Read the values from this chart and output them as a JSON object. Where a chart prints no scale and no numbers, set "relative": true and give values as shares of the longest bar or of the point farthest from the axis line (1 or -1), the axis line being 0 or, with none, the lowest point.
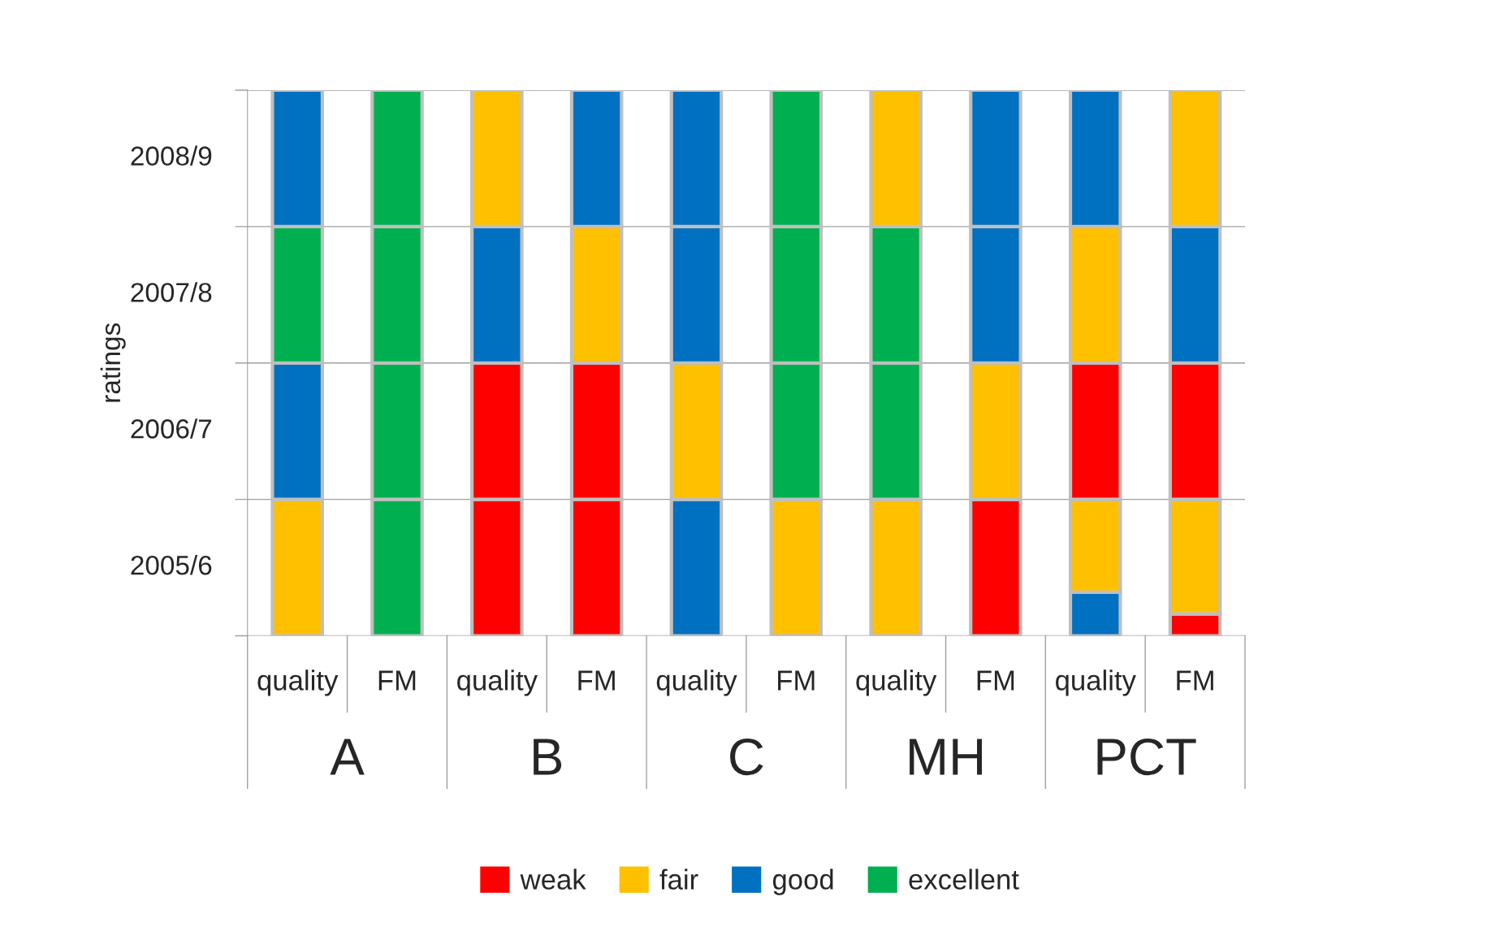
{
  "chart_data": {
    "type": "bar",
    "ylabel": "ratings",
    "relative": true,
    "stacked": true,
    "categories": [
      "quality",
      "FM",
      "quality",
      "FM",
      "quality",
      "FM",
      "quality",
      "FM",
      "quality",
      "FM"
    ],
    "series": [
      {
        "values": [
          0.25,
          0.25,
          0.25,
          0.25,
          0.25,
          0.25,
          0.25,
          0.25,
          0.08,
          0.04
        ],
        "colors": [
          "#ffc000",
          "#00b050",
          "#ff0000",
          "#ff0000",
          "#0070c0",
          "#ffc000",
          "#ffc000",
          "#ff0000",
          "#0070c0",
          "#ff0000"
        ]
      },
      {
        "values": [
          null,
          null,
          null,
          null,
          null,
          null,
          null,
          null,
          0.17,
          0.21
        ],
        "colors": [
          null,
          null,
          null,
          null,
          null,
          null,
          null,
          null,
          "#ffc000",
          "#ffc000"
        ]
      },
      {
        "values": [
          0.25,
          0.25,
          0.25,
          0.25,
          0.25,
          0.25,
          0.25,
          0.25,
          0.25,
          0.25
        ],
        "colors": [
          "#0070c0",
          "#00b050",
          "#ff0000",
          "#ff0000",
          "#ffc000",
          "#00b050",
          "#00b050",
          "#ffc000",
          "#ff0000",
          "#ff0000"
        ]
      },
      {
        "values": [
          0.25,
          0.25,
          0.25,
          0.25,
          0.25,
          0.25,
          0.25,
          0.25,
          0.25,
          0.25
        ],
        "colors": [
          "#00b050",
          "#00b050",
          "#0070c0",
          "#ffc000",
          "#0070c0",
          "#00b050",
          "#00b050",
          "#0070c0",
          "#ffc000",
          "#0070c0"
        ]
      },
      {
        "values": [
          0.25,
          0.25,
          0.25,
          0.25,
          0.25,
          0.25,
          0.25,
          0.25,
          0.25,
          0.25
        ],
        "colors": [
          "#0070c0",
          "#00b050",
          "#ffc000",
          "#0070c0",
          "#0070c0",
          "#00b050",
          "#ffc000",
          "#0070c0",
          "#0070c0",
          "#ffc000"
        ]
      },
      {
        "name": "weak",
        "color": "#ff0000",
        "values": [
          null,
          null,
          null,
          null,
          null,
          null,
          null,
          null,
          null,
          null
        ]
      },
      {
        "name": "fair",
        "color": "#ffc000",
        "values": [
          null,
          null,
          null,
          null,
          null,
          null,
          null,
          null,
          null,
          null
        ]
      },
      {
        "name": "good",
        "color": "#0070c0",
        "values": [
          null,
          null,
          null,
          null,
          null,
          null,
          null,
          null,
          null,
          null
        ]
      },
      {
        "name": "excellent",
        "color": "#00b050",
        "values": [
          null,
          null,
          null,
          null,
          null,
          null,
          null,
          null,
          null,
          null
        ]
      }
    ],
    "grid": "y",
    "legend": "bottom",
    "annotations": [
      "2005/6",
      "2006/7",
      "2007/8",
      "2008/9",
      "A",
      "B",
      "C",
      "MH",
      "PCT"
    ]
  }
}
